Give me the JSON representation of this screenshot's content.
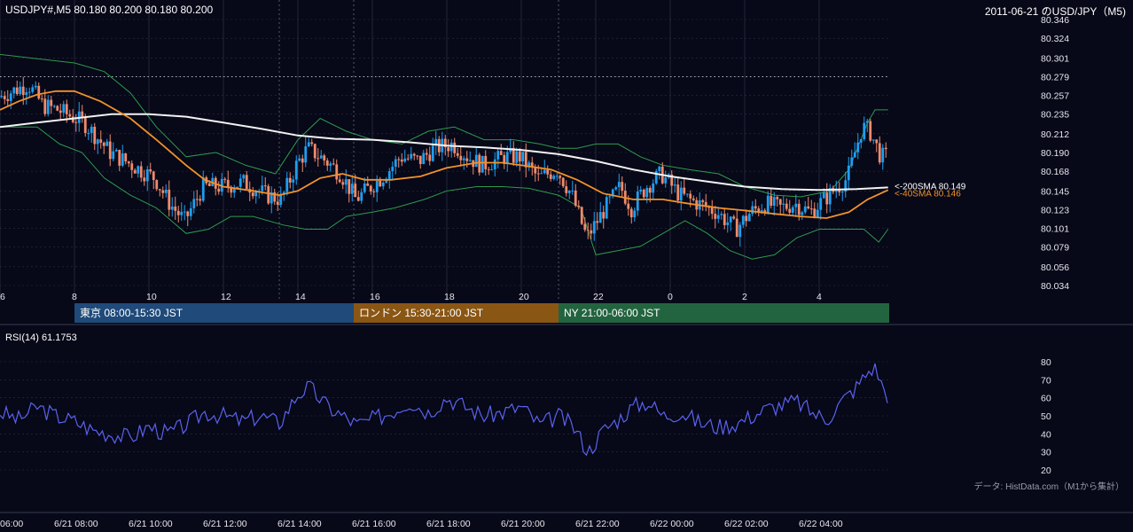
{
  "header": {
    "symbol_info": "USDJPY#,M5 80.180 80.200 80.180 80.200",
    "title": "2011-06-21 のUSD/JPY（M5)"
  },
  "sessions": [
    {
      "label": "東京 08:00-15:30 JST",
      "color": "#1f4a7a",
      "start": 8.0,
      "end": 15.5
    },
    {
      "label": "ロンドン 15:30-21:00 JST",
      "color": "#8a5614",
      "start": 15.5,
      "end": 21.0
    },
    {
      "label": "NY 21:00-06:00 JST",
      "color": "#236440",
      "start": 21.0,
      "end": 30.0
    }
  ],
  "rsi_label": "RSI(14) 61.1753",
  "credit": "データ: HistData.com（M1から集計）",
  "colors": {
    "up": "#1e9ef0",
    "down": "#f08a6c",
    "sma200": "#f2f2f2",
    "sma40": "#f0922a",
    "bb": "#2e9a4e",
    "rsi": "#5a62ee",
    "grid": "#2c2e44"
  },
  "chart_data": [
    {
      "type": "candlestick",
      "title": "2011-06-21 のUSD/JPY（M5)",
      "ylim": [
        80.034,
        80.346
      ],
      "y_ticks": [
        "80.346",
        "80.324",
        "80.301",
        "80.279",
        "80.257",
        "80.235",
        "80.212",
        "80.190",
        "80.168",
        "80.145",
        "80.123",
        "80.101",
        "80.079",
        "80.056",
        "80.034"
      ],
      "x_ticks": [
        {
          "hour": 6,
          "label": "6"
        },
        {
          "hour": 8,
          "label": "8"
        },
        {
          "hour": 10,
          "label": "10"
        },
        {
          "hour": 12,
          "label": "12"
        },
        {
          "hour": 14,
          "label": "14"
        },
        {
          "hour": 16,
          "label": "16"
        },
        {
          "hour": 18,
          "label": "18"
        },
        {
          "hour": 20,
          "label": "20"
        },
        {
          "hour": 22,
          "label": "22"
        },
        {
          "hour": 24,
          "label": "0"
        },
        {
          "hour": 26,
          "label": "2"
        },
        {
          "hour": 28,
          "label": "4"
        }
      ],
      "dashed_day_lines": [
        13.5,
        15.5,
        21.0
      ],
      "high_marker": 80.279,
      "price_path": [
        [
          6.0,
          80.255
        ],
        [
          6.8,
          80.27
        ],
        [
          7.2,
          80.245
        ],
        [
          7.6,
          80.24
        ],
        [
          8.3,
          80.225
        ],
        [
          9.0,
          80.19
        ],
        [
          9.6,
          80.175
        ],
        [
          10.2,
          80.16
        ],
        [
          10.6,
          80.13
        ],
        [
          11.0,
          80.11
        ],
        [
          11.5,
          80.15
        ],
        [
          12.0,
          80.15
        ],
        [
          12.6,
          80.155
        ],
        [
          13.2,
          80.14
        ],
        [
          13.6,
          80.135
        ],
        [
          14.0,
          80.175
        ],
        [
          14.3,
          80.195
        ],
        [
          14.8,
          80.18
        ],
        [
          15.2,
          80.165
        ],
        [
          15.6,
          80.135
        ],
        [
          16.0,
          80.15
        ],
        [
          16.4,
          80.165
        ],
        [
          16.8,
          80.185
        ],
        [
          17.3,
          80.18
        ],
        [
          17.7,
          80.195
        ],
        [
          18.2,
          80.2
        ],
        [
          18.6,
          80.185
        ],
        [
          19.0,
          80.175
        ],
        [
          19.6,
          80.185
        ],
        [
          20.0,
          80.185
        ],
        [
          20.5,
          80.16
        ],
        [
          21.0,
          80.17
        ],
        [
          21.4,
          80.14
        ],
        [
          21.8,
          80.09
        ],
        [
          22.3,
          80.125
        ],
        [
          22.7,
          80.15
        ],
        [
          23.0,
          80.125
        ],
        [
          23.4,
          80.15
        ],
        [
          23.8,
          80.165
        ],
        [
          24.3,
          80.14
        ],
        [
          24.8,
          80.13
        ],
        [
          25.3,
          80.12
        ],
        [
          25.8,
          80.1
        ],
        [
          26.2,
          80.12
        ],
        [
          26.6,
          80.13
        ],
        [
          27.0,
          80.125
        ],
        [
          27.4,
          80.13
        ],
        [
          27.8,
          80.12
        ],
        [
          28.3,
          80.14
        ],
        [
          28.8,
          80.16
        ],
        [
          29.2,
          80.22
        ],
        [
          29.4,
          80.215
        ],
        [
          29.7,
          80.185
        ]
      ],
      "sma200": {
        "name": "200SMA",
        "value": "80.149",
        "points": [
          [
            6.0,
            80.22
          ],
          [
            7.0,
            80.225
          ],
          [
            8.0,
            80.23
          ],
          [
            9.0,
            80.235
          ],
          [
            10.0,
            80.235
          ],
          [
            11.0,
            80.232
          ],
          [
            12.0,
            80.225
          ],
          [
            13.0,
            80.218
          ],
          [
            14.0,
            80.21
          ],
          [
            15.0,
            80.206
          ],
          [
            16.0,
            80.205
          ],
          [
            17.0,
            80.202
          ],
          [
            18.0,
            80.198
          ],
          [
            19.0,
            80.196
          ],
          [
            20.0,
            80.193
          ],
          [
            21.0,
            80.188
          ],
          [
            22.0,
            80.18
          ],
          [
            23.0,
            80.17
          ],
          [
            24.0,
            80.162
          ],
          [
            25.0,
            80.156
          ],
          [
            26.0,
            80.15
          ],
          [
            27.0,
            80.147
          ],
          [
            28.0,
            80.146
          ],
          [
            29.0,
            80.147
          ],
          [
            29.85,
            80.149
          ]
        ]
      },
      "sma40": {
        "name": "40SMA",
        "value": "80.146",
        "points": [
          [
            6.0,
            80.24
          ],
          [
            6.5,
            80.25
          ],
          [
            7.0,
            80.258
          ],
          [
            7.5,
            80.262
          ],
          [
            8.0,
            80.262
          ],
          [
            8.7,
            80.25
          ],
          [
            9.5,
            80.23
          ],
          [
            10.2,
            80.205
          ],
          [
            11.0,
            80.175
          ],
          [
            11.5,
            80.158
          ],
          [
            12.0,
            80.15
          ],
          [
            12.8,
            80.145
          ],
          [
            13.5,
            80.14
          ],
          [
            14.0,
            80.145
          ],
          [
            14.6,
            80.16
          ],
          [
            15.2,
            80.165
          ],
          [
            15.8,
            80.158
          ],
          [
            16.5,
            80.158
          ],
          [
            17.3,
            80.162
          ],
          [
            18.0,
            80.172
          ],
          [
            18.8,
            80.178
          ],
          [
            19.5,
            80.178
          ],
          [
            20.0,
            80.175
          ],
          [
            20.8,
            80.17
          ],
          [
            21.5,
            80.158
          ],
          [
            22.2,
            80.142
          ],
          [
            23.0,
            80.135
          ],
          [
            23.8,
            80.135
          ],
          [
            24.5,
            80.13
          ],
          [
            25.3,
            80.125
          ],
          [
            26.0,
            80.122
          ],
          [
            26.8,
            80.118
          ],
          [
            27.5,
            80.115
          ],
          [
            28.2,
            80.113
          ],
          [
            28.8,
            80.12
          ],
          [
            29.3,
            80.135
          ],
          [
            29.85,
            80.146
          ]
        ]
      },
      "bb_upper": [
        [
          6.0,
          80.305
        ],
        [
          7.0,
          80.3
        ],
        [
          8.0,
          80.295
        ],
        [
          8.8,
          80.285
        ],
        [
          9.5,
          80.26
        ],
        [
          10.2,
          80.22
        ],
        [
          11.0,
          80.185
        ],
        [
          11.8,
          80.19
        ],
        [
          12.6,
          80.175
        ],
        [
          13.4,
          80.165
        ],
        [
          14.0,
          80.205
        ],
        [
          14.6,
          80.23
        ],
        [
          15.3,
          80.215
        ],
        [
          16.0,
          80.205
        ],
        [
          16.8,
          80.2
        ],
        [
          17.5,
          80.215
        ],
        [
          18.2,
          80.22
        ],
        [
          19.0,
          80.205
        ],
        [
          19.8,
          80.205
        ],
        [
          20.5,
          80.2
        ],
        [
          21.0,
          80.195
        ],
        [
          21.5,
          80.195
        ],
        [
          22.0,
          80.2
        ],
        [
          22.6,
          80.2
        ],
        [
          23.2,
          80.185
        ],
        [
          23.8,
          80.175
        ],
        [
          24.5,
          80.17
        ],
        [
          25.3,
          80.165
        ],
        [
          26.0,
          80.15
        ],
        [
          26.8,
          80.14
        ],
        [
          27.5,
          80.138
        ],
        [
          28.3,
          80.145
        ],
        [
          28.8,
          80.17
        ],
        [
          29.3,
          80.225
        ],
        [
          29.5,
          80.24
        ],
        [
          29.85,
          80.24
        ]
      ],
      "bb_lower": [
        [
          6.0,
          80.22
        ],
        [
          7.0,
          80.22
        ],
        [
          7.6,
          80.2
        ],
        [
          8.2,
          80.19
        ],
        [
          8.8,
          80.16
        ],
        [
          9.5,
          80.14
        ],
        [
          10.2,
          80.125
        ],
        [
          11.0,
          80.095
        ],
        [
          11.6,
          80.1
        ],
        [
          12.2,
          80.115
        ],
        [
          12.8,
          80.115
        ],
        [
          13.6,
          80.105
        ],
        [
          14.2,
          80.1
        ],
        [
          14.8,
          80.1
        ],
        [
          15.3,
          80.115
        ],
        [
          16.0,
          80.12
        ],
        [
          16.6,
          80.125
        ],
        [
          17.4,
          80.135
        ],
        [
          18.0,
          80.145
        ],
        [
          18.8,
          80.15
        ],
        [
          19.5,
          80.15
        ],
        [
          20.2,
          80.148
        ],
        [
          21.0,
          80.14
        ],
        [
          21.6,
          80.125
        ],
        [
          22.0,
          80.07
        ],
        [
          22.6,
          80.075
        ],
        [
          23.2,
          80.08
        ],
        [
          23.8,
          80.095
        ],
        [
          24.4,
          80.11
        ],
        [
          25.0,
          80.095
        ],
        [
          25.6,
          80.075
        ],
        [
          26.2,
          80.065
        ],
        [
          26.8,
          80.07
        ],
        [
          27.4,
          80.09
        ],
        [
          28.0,
          80.1
        ],
        [
          28.6,
          80.1
        ],
        [
          29.2,
          80.1
        ],
        [
          29.6,
          80.085
        ],
        [
          29.85,
          80.1
        ]
      ]
    },
    {
      "type": "line",
      "title": "RSI(14) 61.1753",
      "ylim": [
        20,
        80
      ],
      "y_ticks": [
        "80",
        "70",
        "60",
        "50",
        "40",
        "30",
        "20"
      ],
      "x_ticks": [
        "06:00",
        "6/21 08:00",
        "6/21 10:00",
        "6/21 12:00",
        "6/21 14:00",
        "6/21 16:00",
        "6/21 18:00",
        "6/21 20:00",
        "6/21 22:00",
        "6/22 00:00",
        "6/22 02:00",
        "6/22 04:00"
      ],
      "series": [
        {
          "name": "RSI(14)",
          "values": [
            [
              6.0,
              52
            ],
            [
              6.5,
              48
            ],
            [
              7.0,
              55
            ],
            [
              7.5,
              50
            ],
            [
              8.0,
              47
            ],
            [
              8.5,
              42
            ],
            [
              9.0,
              40
            ],
            [
              9.5,
              38
            ],
            [
              10.0,
              44
            ],
            [
              10.5,
              40
            ],
            [
              11.0,
              45
            ],
            [
              11.5,
              52
            ],
            [
              12.0,
              50
            ],
            [
              12.5,
              47
            ],
            [
              13.0,
              50
            ],
            [
              13.5,
              46
            ],
            [
              14.0,
              62
            ],
            [
              14.3,
              66
            ],
            [
              14.8,
              55
            ],
            [
              15.2,
              50
            ],
            [
              15.6,
              45
            ],
            [
              16.0,
              48
            ],
            [
              16.5,
              52
            ],
            [
              17.0,
              58
            ],
            [
              17.5,
              52
            ],
            [
              18.0,
              60
            ],
            [
              18.5,
              55
            ],
            [
              19.0,
              50
            ],
            [
              19.5,
              52
            ],
            [
              20.0,
              55
            ],
            [
              20.5,
              45
            ],
            [
              21.0,
              50
            ],
            [
              21.4,
              44
            ],
            [
              21.8,
              30
            ],
            [
              22.2,
              42
            ],
            [
              22.6,
              48
            ],
            [
              23.0,
              55
            ],
            [
              23.4,
              58
            ],
            [
              23.8,
              50
            ],
            [
              24.3,
              52
            ],
            [
              24.8,
              46
            ],
            [
              25.3,
              44
            ],
            [
              25.8,
              46
            ],
            [
              26.2,
              50
            ],
            [
              26.6,
              54
            ],
            [
              27.0,
              56
            ],
            [
              27.4,
              58
            ],
            [
              27.8,
              52
            ],
            [
              28.2,
              48
            ],
            [
              28.6,
              58
            ],
            [
              29.0,
              66
            ],
            [
              29.3,
              74
            ],
            [
              29.5,
              78
            ],
            [
              29.7,
              66
            ],
            [
              29.85,
              61.2
            ]
          ]
        }
      ]
    }
  ]
}
